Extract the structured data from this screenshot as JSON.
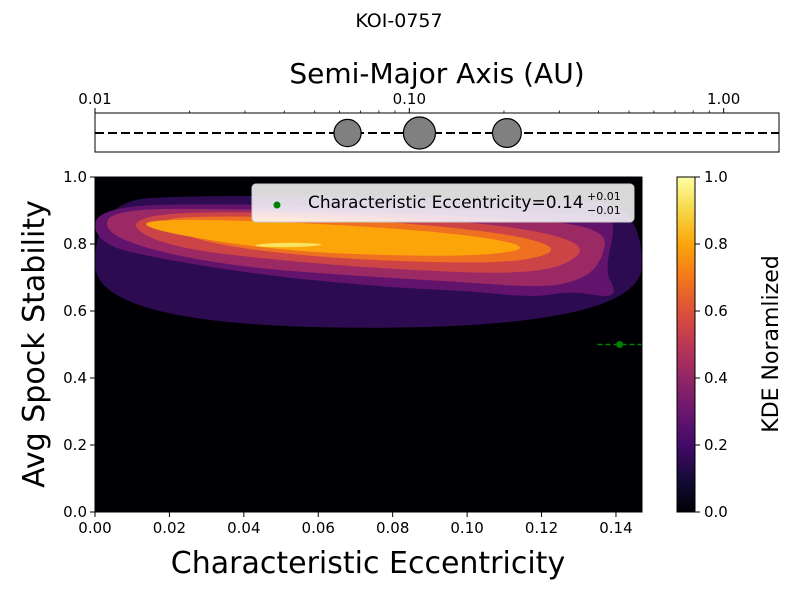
{
  "figure_title": "KOI-0757",
  "chart_data": [
    {
      "type": "scatter",
      "panel": "orbit-axis",
      "xlabel": "Semi-Major Axis (AU)",
      "xscale": "log",
      "xlim": [
        0.01,
        1.5
      ],
      "tick_labels": [
        "0.01",
        "0.10",
        "1.00"
      ],
      "tick_values": [
        0.01,
        0.1,
        1.0
      ],
      "planets": [
        {
          "semi_major_axis_au": 0.0636,
          "relative_size": 0.85
        },
        {
          "semi_major_axis_au": 0.1077,
          "relative_size": 1.0
        },
        {
          "semi_major_axis_au": 0.2044,
          "relative_size": 0.9
        }
      ],
      "planet_color": "#808080",
      "line_style": "dashed"
    },
    {
      "type": "heatmap",
      "panel": "kde",
      "xlabel": "Characteristic Eccentricity",
      "ylabel": "Avg Spock Stability",
      "xlim": [
        0.0,
        0.147
      ],
      "ylim": [
        0.0,
        1.0
      ],
      "x_ticks": [
        "0.00",
        "0.02",
        "0.04",
        "0.06",
        "0.08",
        "0.10",
        "0.12",
        "0.14"
      ],
      "y_ticks": [
        "0.0",
        "0.2",
        "0.4",
        "0.6",
        "0.8",
        "1.0"
      ],
      "colormap": "inferno",
      "legend": {
        "placement": "top-right",
        "label_main": "Characteristic Eccentricity=0.14",
        "label_sup": "+0.01",
        "label_sub": "−0.01"
      },
      "point": {
        "x": 0.141,
        "y": 0.5,
        "xerr_low": 0.006,
        "xerr_high": 0.006,
        "color": "#008000"
      },
      "kde_levels": [
        {
          "level": 0.15,
          "y": [
            0.55,
            0.93,
            0.55,
            0.93
          ],
          "x_end": 0.147
        },
        {
          "level": 0.28,
          "y": [
            0.66,
            0.915,
            0.56,
            0.9
          ]
        },
        {
          "level": 0.42,
          "y": [
            0.69,
            0.905,
            0.62,
            0.86
          ]
        },
        {
          "level": 0.55,
          "y": [
            0.72,
            0.895,
            0.67,
            0.83
          ]
        },
        {
          "level": 0.68,
          "y": [
            0.74,
            0.885,
            0.7,
            0.82
          ]
        },
        {
          "level": 0.8,
          "y": [
            0.76,
            0.872,
            0.72,
            0.8
          ]
        },
        {
          "level": 0.93,
          "y": [
            0.782,
            0.812
          ]
        }
      ],
      "colorbar": {
        "label": "KDE Noramlized",
        "range": [
          0.0,
          1.0
        ],
        "ticks": [
          "0.0",
          "0.2",
          "0.4",
          "0.6",
          "0.8",
          "1.0"
        ]
      }
    }
  ]
}
